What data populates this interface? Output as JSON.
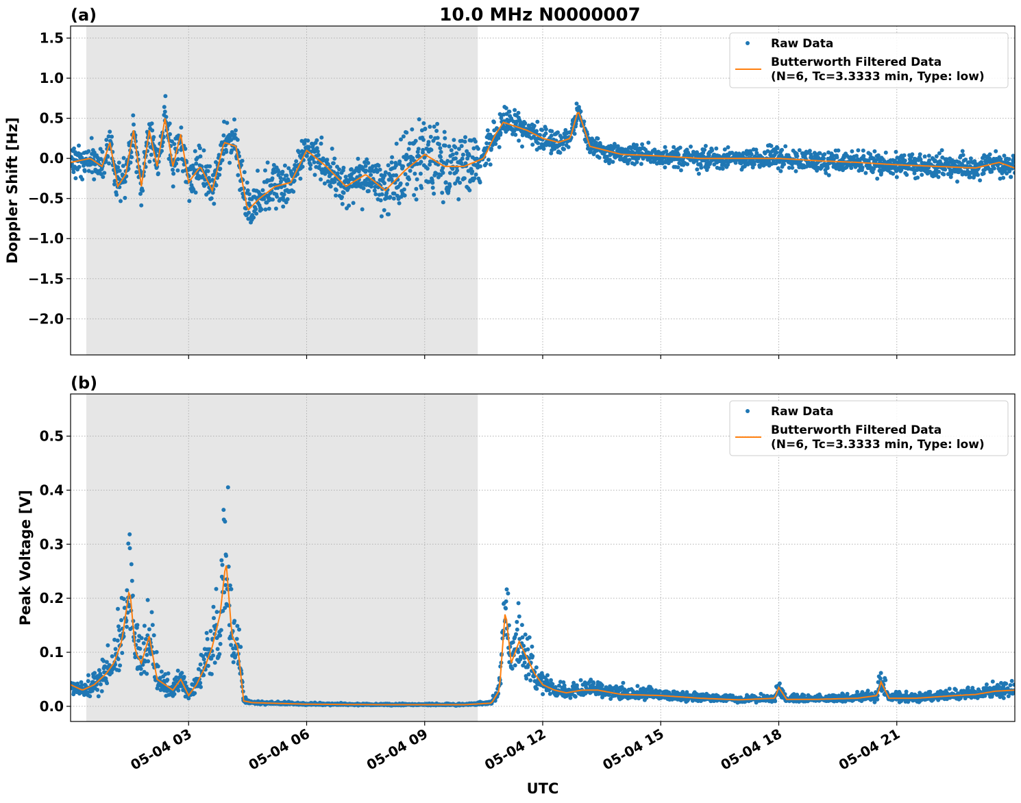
{
  "figure": {
    "title": "10.0 MHz N0000007",
    "xlabel": "UTC"
  },
  "chart_data": [
    {
      "panel": "(a)",
      "type": "scatter",
      "title": "10.0 MHz N0000007",
      "ylabel": "Doppler Shift [Hz]",
      "xlabel": "UTC",
      "x_unit": "hours UTC on 05-04",
      "xlim": [
        0,
        24
      ],
      "ylim": [
        -2.45,
        1.65
      ],
      "yticks": [
        1.5,
        1.0,
        0.5,
        0.0,
        -0.5,
        -1.0,
        -1.5,
        -2.0
      ],
      "ytick_labels": [
        "1.5",
        "1.0",
        "0.5",
        "0.0",
        "−0.5",
        "−1.0",
        "−1.5",
        "−2.0"
      ],
      "xticks": [
        3,
        6,
        9,
        12,
        15,
        18,
        21
      ],
      "xtick_labels": [
        "05-04 03",
        "05-04 06",
        "05-04 09",
        "05-04 12",
        "05-04 15",
        "05-04 18",
        "05-04 21"
      ],
      "shaded_interval": [
        0.4,
        10.35
      ],
      "grid": true,
      "legend_position": "top-right",
      "series": [
        {
          "name": "Raw Data",
          "kind": "points",
          "color": "#1f77b4"
        },
        {
          "name": "Butterworth Filtered Data\n(N=6, Tc=3.3333 min, Type: low)",
          "kind": "line",
          "color": "#ff7f0e"
        }
      ],
      "filtered_profile": {
        "x": [
          0,
          0.5,
          0.8,
          1.0,
          1.2,
          1.4,
          1.6,
          1.8,
          2.0,
          2.2,
          2.4,
          2.6,
          2.8,
          3.0,
          3.3,
          3.6,
          3.9,
          4.2,
          4.5,
          4.8,
          5.2,
          5.6,
          6.0,
          6.5,
          7.0,
          7.5,
          8.0,
          8.5,
          9.0,
          9.5,
          10.0,
          10.5,
          10.8,
          11.0,
          11.3,
          11.6,
          12.0,
          12.4,
          12.7,
          12.9,
          13.2,
          13.6,
          14.0,
          15.0,
          16.0,
          17.0,
          18.0,
          19.0,
          20.0,
          21.0,
          22.0,
          23.0,
          23.6,
          24.0
        ],
        "y": [
          -0.05,
          0.0,
          -0.1,
          0.2,
          -0.35,
          -0.2,
          0.35,
          -0.35,
          0.35,
          -0.1,
          0.5,
          -0.1,
          0.3,
          -0.3,
          -0.1,
          -0.4,
          0.2,
          0.15,
          -0.65,
          -0.5,
          -0.35,
          -0.3,
          0.1,
          -0.1,
          -0.35,
          -0.2,
          -0.4,
          -0.15,
          0.05,
          -0.1,
          -0.1,
          0.0,
          0.3,
          0.45,
          0.4,
          0.35,
          0.25,
          0.2,
          0.25,
          0.6,
          0.15,
          0.1,
          0.05,
          0.03,
          0.0,
          0.0,
          0.0,
          -0.03,
          -0.05,
          -0.08,
          -0.1,
          -0.12,
          -0.05,
          -0.12
        ]
      },
      "scatter_spread": {
        "x": [
          0,
          2.5,
          3.5,
          4.5,
          6.0,
          7.5,
          8.5,
          9.0,
          9.5,
          10.3,
          11.0,
          12.0,
          13.0,
          14.0,
          18.0,
          24.0
        ],
        "half_width": [
          0.28,
          0.35,
          0.3,
          0.35,
          0.3,
          0.35,
          0.55,
          0.7,
          0.55,
          0.4,
          0.25,
          0.18,
          0.18,
          0.16,
          0.17,
          0.2
        ]
      }
    },
    {
      "panel": "(b)",
      "type": "scatter",
      "ylabel": "Peak Voltage [V]",
      "xlabel": "UTC",
      "x_unit": "hours UTC on 05-04",
      "xlim": [
        0,
        24
      ],
      "ylim": [
        -0.028,
        0.578
      ],
      "yticks": [
        0.0,
        0.1,
        0.2,
        0.3,
        0.4,
        0.5
      ],
      "ytick_labels": [
        "0.0",
        "0.1",
        "0.2",
        "0.3",
        "0.4",
        "0.5"
      ],
      "xticks": [
        3,
        6,
        9,
        12,
        15,
        18,
        21
      ],
      "xtick_labels": [
        "05-04 03",
        "05-04 06",
        "05-04 09",
        "05-04 12",
        "05-04 15",
        "05-04 18",
        "05-04 21"
      ],
      "shaded_interval": [
        0.4,
        10.35
      ],
      "grid": true,
      "legend_position": "top-right",
      "series": [
        {
          "name": "Raw Data",
          "kind": "points",
          "color": "#1f77b4"
        },
        {
          "name": "Butterworth Filtered Data\n(N=6, Tc=3.3333 min, Type: low)",
          "kind": "line",
          "color": "#ff7f0e"
        }
      ],
      "filtered_profile": {
        "x": [
          0,
          0.3,
          0.6,
          0.9,
          1.1,
          1.3,
          1.5,
          1.65,
          1.8,
          2.0,
          2.2,
          2.4,
          2.6,
          2.8,
          3.0,
          3.2,
          3.4,
          3.6,
          3.8,
          3.95,
          4.1,
          4.25,
          4.4,
          4.6,
          5.0,
          6.0,
          8.0,
          10.0,
          10.7,
          10.9,
          11.05,
          11.2,
          11.4,
          11.6,
          11.8,
          12.0,
          12.3,
          12.6,
          13.0,
          13.4,
          14.0,
          15.0,
          16.0,
          17.0,
          17.9,
          18.0,
          18.2,
          19.0,
          20.0,
          20.5,
          20.6,
          20.8,
          21.5,
          22.5,
          23.0,
          23.5,
          24.0
        ],
        "y": [
          0.04,
          0.03,
          0.04,
          0.06,
          0.08,
          0.12,
          0.22,
          0.1,
          0.08,
          0.13,
          0.05,
          0.04,
          0.03,
          0.05,
          0.02,
          0.04,
          0.07,
          0.11,
          0.17,
          0.27,
          0.13,
          0.11,
          0.01,
          0.007,
          0.006,
          0.004,
          0.003,
          0.003,
          0.006,
          0.03,
          0.18,
          0.08,
          0.12,
          0.09,
          0.06,
          0.04,
          0.03,
          0.025,
          0.03,
          0.03,
          0.022,
          0.02,
          0.015,
          0.012,
          0.015,
          0.035,
          0.013,
          0.013,
          0.015,
          0.02,
          0.045,
          0.015,
          0.015,
          0.02,
          0.022,
          0.028,
          0.03
        ]
      }
    }
  ]
}
